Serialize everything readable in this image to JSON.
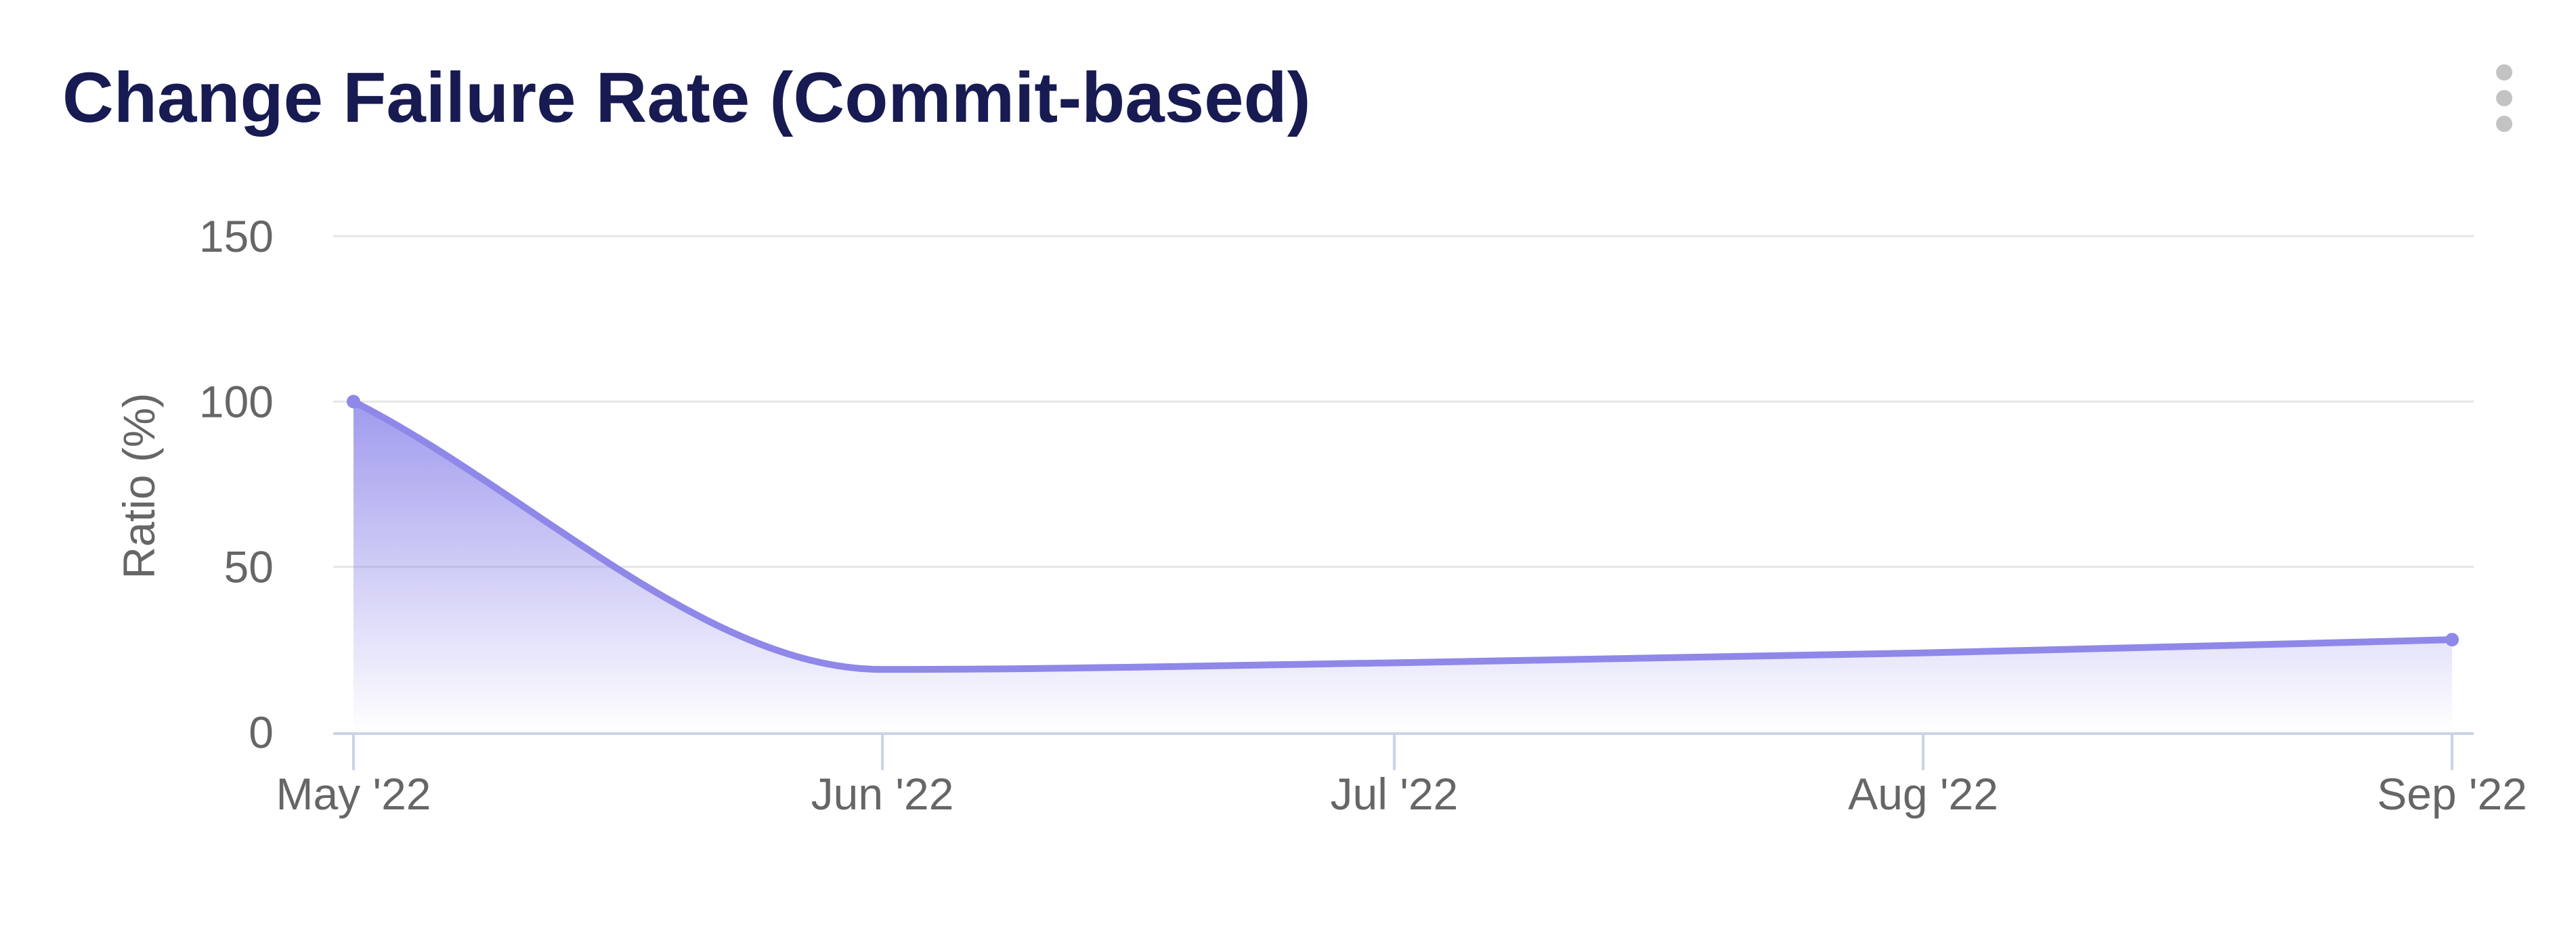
{
  "header": {
    "title": "Change Failure Rate (Commit-based)"
  },
  "menu": {
    "icon": "kebab-vertical-dots-icon"
  },
  "colors": {
    "title_text": "#181a52",
    "menu_icon": "#c3c3c3",
    "series_line": "#8f88e9",
    "series_fill_base_rgb": "136,129,233",
    "series_fill_top_alpha": 0.8,
    "gridline": "#e6e6e6",
    "axis_line": "#cad3e6",
    "tick_label": "#666666",
    "axis_title": "#666666"
  },
  "chart_data": {
    "type": "area",
    "line_shape": "spline",
    "categories": [
      "May '22",
      "Jun '22",
      "Jul '22",
      "Aug '22",
      "Sep '22"
    ],
    "x_offsets_days": [
      0,
      31,
      61,
      92,
      123
    ],
    "values": [
      100,
      19,
      21,
      24,
      28
    ],
    "title": "",
    "xlabel": "",
    "ylabel": "Ratio (%)",
    "ylim": [
      0,
      150
    ],
    "yticks": [
      0,
      50,
      100,
      150
    ],
    "grid": "horizontal-only",
    "legend": "none",
    "markers": "endpoints-only"
  }
}
